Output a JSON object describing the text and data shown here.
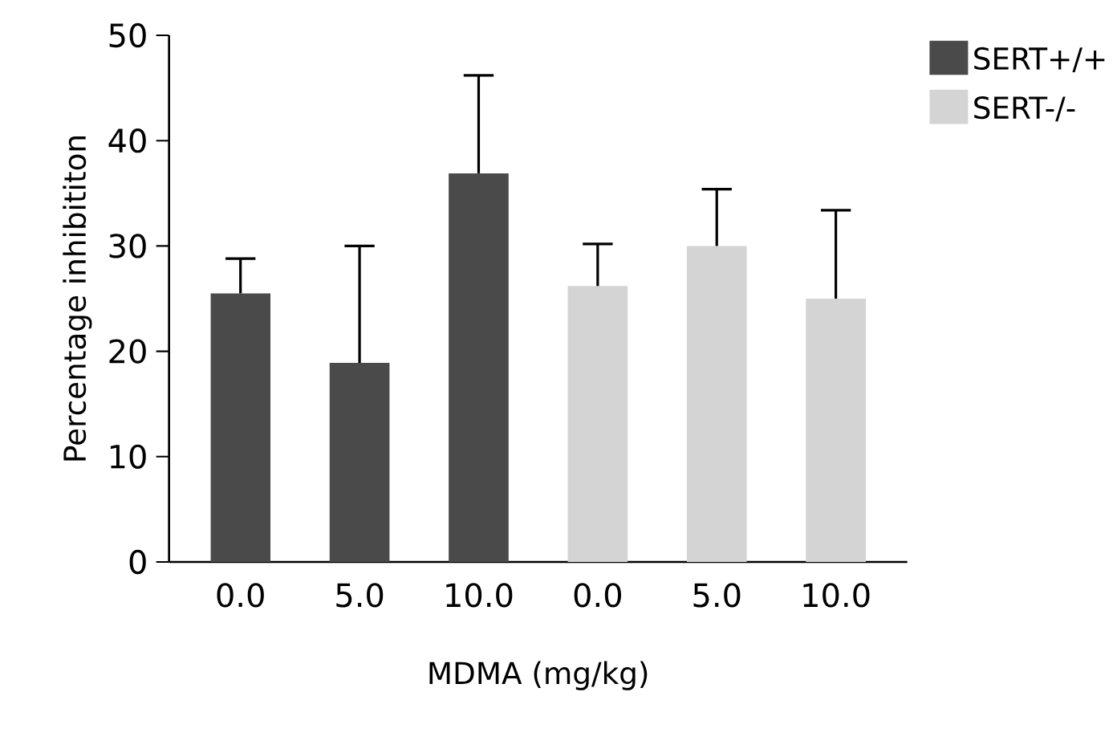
{
  "chart_data": {
    "type": "bar",
    "xlabel": "MDMA (mg/kg)",
    "ylabel": "Percentage inhibititon",
    "categories": [
      "0.0",
      "5.0",
      "10.0",
      "0.0",
      "5.0",
      "10.0"
    ],
    "series": [
      {
        "name": "SERT+/+",
        "color": "#4a4a4a",
        "values": [
          25.5,
          18.9,
          36.9,
          null,
          null,
          null
        ],
        "errors": [
          [
            25.5,
            28.8
          ],
          [
            18.9,
            30
          ],
          [
            36.9,
            46.2
          ],
          null,
          null,
          null
        ]
      },
      {
        "name": "SERT-/-",
        "color": "#d4d4d4",
        "values": [
          null,
          null,
          null,
          26.2,
          30,
          25
        ],
        "errors": [
          null,
          null,
          null,
          [
            26.2,
            30.2
          ],
          [
            30,
            35.4
          ],
          [
            25,
            33.4
          ]
        ]
      }
    ],
    "ylim": [
      0,
      50
    ],
    "yticks": [
      0,
      10,
      20,
      30,
      40,
      50
    ],
    "grid": false,
    "legend": "top right"
  }
}
